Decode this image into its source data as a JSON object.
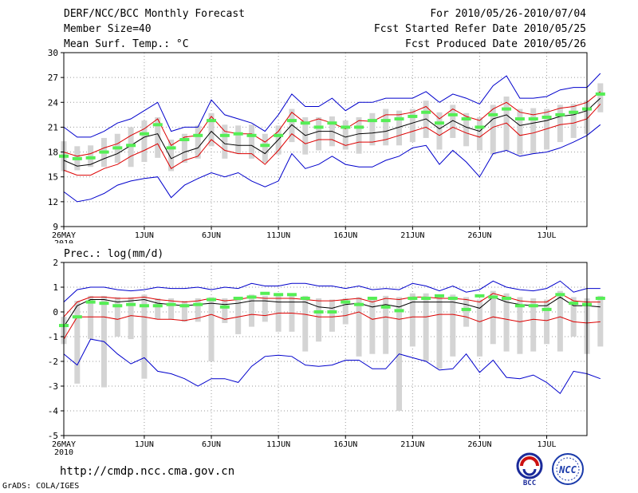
{
  "header": {
    "title": "DERF/NCC/BCC Monthly Forecast",
    "member_size": "Member Size=40",
    "variable": "Mean Surf. Temp.: °C",
    "period": "For 2010/05/26-2010/07/04",
    "fcst_started": "Fcst Started Refer Date 2010/05/25",
    "fcst_produced": "Fcst Produced Date 2010/05/26"
  },
  "footer": {
    "url": "http://cmdp.ncc.cma.gov.cn",
    "grads": "GrADS: COLA/IGES",
    "logo_left": "BCC",
    "logo_right": "NCC"
  },
  "colors": {
    "envelope": "#0000cc",
    "spread": "#dd0000",
    "mean": "#000000",
    "obs": "#55ee55",
    "box": "#d4d4d4"
  },
  "chart_data": [
    {
      "type": "line",
      "name": "temperature",
      "ylabel": "Mean Surf. Temp.: °C",
      "ylim": [
        9,
        30
      ],
      "yticks": [
        9,
        12,
        15,
        18,
        21,
        24,
        27,
        30
      ],
      "x_days": 40,
      "xticks": [
        {
          "day": 1,
          "label": "26MAY",
          "sub": "2010"
        },
        {
          "day": 7,
          "label": "1JUN"
        },
        {
          "day": 12,
          "label": "6JUN"
        },
        {
          "day": 17,
          "label": "11JUN"
        },
        {
          "day": 22,
          "label": "16JUN"
        },
        {
          "day": 27,
          "label": "21JUN"
        },
        {
          "day": 32,
          "label": "26JUN"
        },
        {
          "day": 37,
          "label": "1JUL"
        }
      ],
      "series": {
        "max": [
          21.0,
          19.8,
          19.8,
          20.5,
          21.5,
          22.0,
          23.0,
          24.0,
          20.5,
          21.0,
          21.0,
          24.3,
          22.5,
          22.0,
          21.5,
          20.5,
          22.5,
          25.0,
          23.5,
          23.5,
          24.5,
          23.0,
          24.0,
          24.0,
          24.5,
          24.5,
          24.5,
          25.3,
          24.0,
          25.0,
          24.5,
          23.8,
          26.0,
          27.2,
          24.5,
          24.5,
          24.7,
          25.5,
          25.8,
          25.8,
          27.5
        ],
        "upper": [
          18.0,
          17.5,
          17.8,
          18.5,
          19.0,
          20.0,
          20.8,
          22.0,
          18.8,
          19.8,
          20.0,
          22.3,
          20.5,
          20.2,
          20.2,
          19.2,
          20.5,
          22.8,
          21.5,
          22.0,
          21.5,
          20.8,
          21.8,
          21.7,
          22.5,
          22.5,
          22.8,
          23.5,
          22.0,
          23.2,
          22.3,
          21.8,
          23.2,
          24.0,
          22.8,
          22.5,
          22.8,
          23.3,
          23.5,
          24.0,
          25.3
        ],
        "mean": [
          17.0,
          16.3,
          16.5,
          17.2,
          17.8,
          18.8,
          19.8,
          20.2,
          17.2,
          18.0,
          18.5,
          20.5,
          19.0,
          18.8,
          18.8,
          17.8,
          19.5,
          21.3,
          20.0,
          20.5,
          20.5,
          19.8,
          20.2,
          20.3,
          20.5,
          21.0,
          21.5,
          22.0,
          20.8,
          21.8,
          21.0,
          20.5,
          22.0,
          22.5,
          21.2,
          21.5,
          21.8,
          22.3,
          22.5,
          23.0,
          24.5
        ],
        "lower": [
          15.8,
          15.2,
          15.2,
          16.0,
          16.5,
          17.5,
          18.2,
          19.0,
          16.0,
          17.0,
          17.5,
          19.5,
          18.2,
          17.8,
          17.8,
          16.5,
          18.2,
          20.2,
          19.0,
          19.5,
          19.5,
          18.8,
          19.2,
          19.2,
          19.5,
          20.0,
          20.5,
          21.0,
          20.0,
          21.0,
          20.3,
          19.8,
          21.0,
          21.5,
          20.0,
          20.3,
          20.8,
          21.3,
          21.5,
          22.0,
          23.8
        ],
        "min": [
          13.2,
          12.0,
          12.3,
          13.0,
          14.0,
          14.5,
          14.8,
          15.0,
          12.5,
          14.0,
          14.8,
          15.5,
          15.0,
          15.5,
          14.5,
          13.8,
          14.5,
          17.8,
          16.0,
          16.5,
          17.5,
          16.5,
          16.2,
          16.2,
          17.0,
          17.5,
          18.5,
          18.8,
          16.5,
          18.2,
          16.8,
          15.0,
          17.8,
          18.2,
          17.5,
          17.8,
          18.0,
          18.5,
          19.2,
          20.0,
          21.3
        ],
        "obs": [
          17.5,
          17.2,
          17.3,
          18.0,
          18.5,
          18.8,
          20.2,
          21.3,
          18.5,
          19.5,
          20.0,
          21.8,
          20.0,
          20.2,
          20.0,
          18.8,
          20.0,
          21.8,
          21.5,
          21.0,
          21.5,
          21.0,
          21.0,
          21.8,
          21.8,
          22.0,
          22.3,
          22.8,
          21.5,
          22.5,
          22.0,
          21.0,
          22.5,
          23.2,
          22.0,
          22.0,
          22.2,
          22.5,
          22.8,
          23.2,
          25.0
        ],
        "box_top": [
          19.3,
          18.7,
          18.8,
          19.7,
          20.2,
          21.0,
          21.8,
          22.2,
          19.5,
          20.2,
          21.2,
          22.7,
          21.3,
          21.2,
          21.3,
          20.2,
          21.2,
          23.2,
          22.2,
          22.2,
          22.3,
          21.8,
          22.2,
          22.7,
          23.2,
          23.0,
          23.2,
          24.2,
          22.8,
          23.7,
          22.7,
          22.2,
          23.7,
          24.7,
          23.2,
          23.3,
          23.2,
          23.7,
          23.8,
          24.2,
          26.3
        ],
        "box_bot": [
          15.7,
          15.8,
          16.2,
          16.2,
          16.7,
          16.2,
          16.8,
          17.3,
          15.7,
          16.7,
          17.2,
          18.7,
          17.2,
          17.8,
          17.2,
          16.7,
          17.7,
          19.2,
          17.7,
          18.2,
          18.7,
          18.3,
          17.8,
          18.8,
          18.8,
          18.8,
          19.2,
          19.7,
          18.3,
          19.7,
          18.7,
          18.2,
          17.7,
          18.2,
          17.7,
          17.8,
          18.3,
          19.2,
          19.7,
          20.2,
          22.8
        ]
      }
    },
    {
      "type": "line",
      "name": "precipitation",
      "ylabel": "Prec.: log(mm/d)",
      "ylim": [
        -5,
        2
      ],
      "yticks": [
        -5,
        -4,
        -3,
        -2,
        -1,
        0,
        1,
        2
      ],
      "x_days": 40,
      "xticks": [
        {
          "day": 1,
          "label": "26MAY",
          "sub": "2010"
        },
        {
          "day": 7,
          "label": "1JUN"
        },
        {
          "day": 12,
          "label": "6JUN"
        },
        {
          "day": 17,
          "label": "11JUN"
        },
        {
          "day": 22,
          "label": "16JUN"
        },
        {
          "day": 27,
          "label": "21JUN"
        },
        {
          "day": 32,
          "label": "26JUN"
        },
        {
          "day": 37,
          "label": "1JUL"
        }
      ],
      "series": {
        "max": [
          0.4,
          0.9,
          1.0,
          1.0,
          0.9,
          0.85,
          0.9,
          1.0,
          0.95,
          0.95,
          1.0,
          0.9,
          1.0,
          0.95,
          1.15,
          1.05,
          1.05,
          1.15,
          1.15,
          1.05,
          1.05,
          0.95,
          1.05,
          0.9,
          0.95,
          0.9,
          1.15,
          1.05,
          0.85,
          1.05,
          0.8,
          0.9,
          1.25,
          1.0,
          0.9,
          0.85,
          0.95,
          1.25,
          0.8,
          0.95,
          0.95
        ],
        "upper": [
          -0.2,
          0.4,
          0.6,
          0.6,
          0.55,
          0.55,
          0.6,
          0.5,
          0.45,
          0.4,
          0.45,
          0.55,
          0.45,
          0.5,
          0.6,
          0.55,
          0.55,
          0.55,
          0.5,
          0.45,
          0.45,
          0.5,
          0.55,
          0.4,
          0.55,
          0.5,
          0.6,
          0.6,
          0.55,
          0.55,
          0.5,
          0.4,
          0.75,
          0.6,
          0.45,
          0.4,
          0.4,
          0.75,
          0.45,
          0.4,
          0.4
        ],
        "mean": [
          -0.6,
          0.25,
          0.5,
          0.5,
          0.4,
          0.45,
          0.5,
          0.35,
          0.3,
          0.25,
          0.3,
          0.35,
          0.3,
          0.35,
          0.45,
          0.45,
          0.4,
          0.4,
          0.4,
          0.2,
          0.15,
          0.3,
          0.35,
          0.2,
          0.3,
          0.2,
          0.4,
          0.4,
          0.4,
          0.4,
          0.3,
          0.15,
          0.6,
          0.4,
          0.3,
          0.25,
          0.25,
          0.6,
          0.25,
          0.25,
          0.2
        ],
        "lower": [
          -1.1,
          -0.2,
          -0.2,
          -0.2,
          -0.3,
          -0.15,
          -0.2,
          -0.3,
          -0.3,
          -0.35,
          -0.25,
          -0.1,
          -0.3,
          -0.2,
          -0.1,
          -0.15,
          -0.05,
          -0.05,
          -0.1,
          -0.2,
          -0.2,
          -0.15,
          0.0,
          -0.3,
          -0.2,
          -0.3,
          -0.2,
          -0.2,
          -0.1,
          -0.1,
          -0.2,
          -0.4,
          -0.2,
          -0.3,
          -0.4,
          -0.3,
          -0.35,
          -0.2,
          -0.4,
          -0.45,
          -0.4
        ],
        "min": [
          -1.7,
          -2.15,
          -1.1,
          -1.2,
          -1.7,
          -2.1,
          -1.85,
          -2.4,
          -2.5,
          -2.7,
          -3.0,
          -2.7,
          -2.7,
          -2.85,
          -2.2,
          -1.8,
          -1.75,
          -1.8,
          -2.15,
          -2.2,
          -2.15,
          -1.95,
          -1.95,
          -2.3,
          -2.3,
          -1.7,
          -1.85,
          -2.0,
          -2.35,
          -2.3,
          -1.7,
          -2.45,
          -1.95,
          -2.65,
          -2.7,
          -2.55,
          -2.85,
          -3.3,
          -2.4,
          -2.5,
          -2.7
        ],
        "obs": [
          -0.55,
          -0.2,
          0.4,
          0.35,
          0.25,
          0.3,
          0.25,
          0.25,
          0.3,
          0.25,
          0.3,
          0.5,
          0.2,
          0.55,
          0.6,
          0.75,
          0.7,
          0.7,
          0.55,
          0.0,
          0.0,
          0.4,
          0.3,
          0.55,
          0.2,
          0.05,
          0.55,
          0.55,
          0.65,
          0.55,
          0.1,
          0.65,
          0.6,
          0.55,
          0.25,
          0.25,
          0.1,
          0.7,
          0.35,
          0.3,
          0.55
        ],
        "box_top": [
          -0.2,
          0.45,
          0.65,
          0.65,
          0.6,
          0.6,
          0.7,
          0.55,
          0.55,
          0.45,
          0.55,
          0.6,
          0.55,
          0.55,
          0.7,
          0.65,
          0.65,
          0.7,
          0.65,
          0.55,
          0.5,
          0.55,
          0.6,
          0.55,
          0.65,
          0.6,
          0.75,
          0.75,
          0.7,
          0.7,
          0.6,
          0.5,
          0.85,
          0.75,
          0.6,
          0.55,
          0.5,
          0.85,
          0.6,
          0.55,
          0.65
        ],
        "box_bot": [
          -1.3,
          -2.9,
          -1.1,
          -3.05,
          -1.0,
          -1.1,
          -2.7,
          -0.3,
          -0.3,
          -0.4,
          -0.4,
          -2.0,
          -0.45,
          -0.9,
          -0.6,
          -0.4,
          -0.8,
          -0.8,
          -1.6,
          -1.2,
          -0.8,
          -0.5,
          -1.8,
          -1.7,
          -1.7,
          -4.0,
          -1.4,
          -2.0,
          -2.3,
          -1.8,
          -0.6,
          -1.8,
          -1.3,
          -1.6,
          -1.7,
          -1.6,
          -1.3,
          -1.6,
          -1.0,
          -1.7,
          -1.4
        ]
      }
    }
  ]
}
